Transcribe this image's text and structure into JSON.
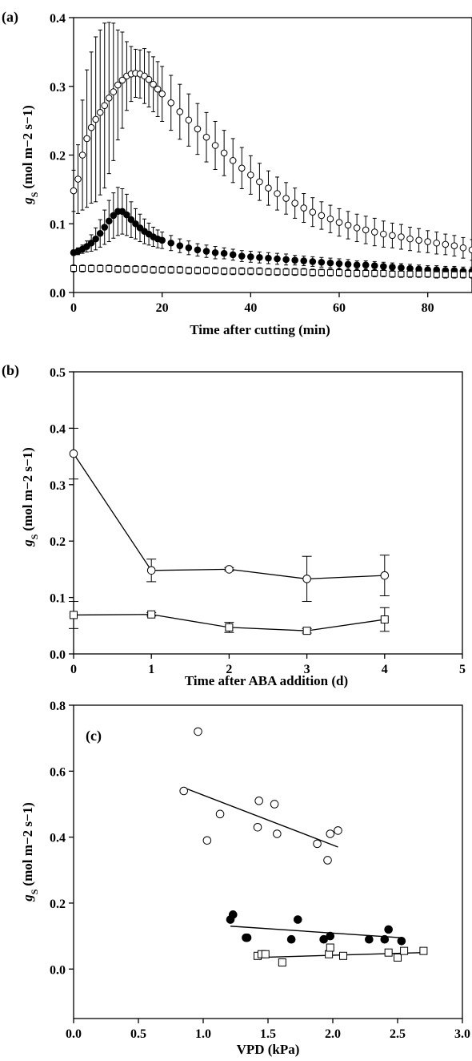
{
  "chart_data": [
    {
      "panel": "(a)",
      "type": "scatter",
      "xlabel": "Time after cutting (min)",
      "ylabel_main": "g",
      "ylabel_sub": "S",
      "ylabel_units": "(mol m−2 s−1)",
      "xlim": [
        0,
        90
      ],
      "ylim": [
        0.0,
        0.4
      ],
      "xticks": [
        0,
        20,
        40,
        60,
        80
      ],
      "xtick_labels": [
        "0",
        "20",
        "40",
        "60",
        "80"
      ],
      "yticks": [
        0.0,
        0.1,
        0.2,
        0.3,
        0.4
      ],
      "ytick_labels": [
        "0.0",
        "0.1",
        "0.2",
        "0.3",
        "0.4"
      ],
      "grid": false,
      "series": [
        {
          "marker": "open-circle",
          "x": [
            0,
            1,
            2,
            3,
            4,
            5,
            6,
            7,
            8,
            9,
            10,
            11,
            12,
            13,
            14,
            15,
            16,
            17,
            18,
            19,
            20,
            22,
            24,
            26,
            28,
            30,
            32,
            34,
            36,
            38,
            40,
            42,
            44,
            46,
            48,
            50,
            52,
            54,
            56,
            58,
            60,
            62,
            64,
            66,
            68,
            70,
            72,
            74,
            76,
            78,
            80,
            82,
            84,
            86,
            88,
            90
          ],
          "y": [
            0.148,
            0.165,
            0.2,
            0.224,
            0.24,
            0.252,
            0.262,
            0.272,
            0.283,
            0.292,
            0.302,
            0.309,
            0.315,
            0.318,
            0.319,
            0.318,
            0.315,
            0.31,
            0.303,
            0.296,
            0.289,
            0.276,
            0.263,
            0.251,
            0.238,
            0.226,
            0.214,
            0.203,
            0.192,
            0.181,
            0.171,
            0.161,
            0.152,
            0.144,
            0.137,
            0.13,
            0.123,
            0.117,
            0.112,
            0.107,
            0.102,
            0.098,
            0.094,
            0.091,
            0.088,
            0.085,
            0.083,
            0.081,
            0.078,
            0.076,
            0.074,
            0.072,
            0.07,
            0.068,
            0.065,
            0.062
          ],
          "err": [
            0.03,
            0.05,
            0.08,
            0.1,
            0.11,
            0.12,
            0.12,
            0.12,
            0.11,
            0.1,
            0.08,
            0.07,
            0.05,
            0.04,
            0.035,
            0.035,
            0.04,
            0.04,
            0.04,
            0.04,
            0.04,
            0.04,
            0.04,
            0.038,
            0.037,
            0.036,
            0.035,
            0.033,
            0.032,
            0.03,
            0.028,
            0.027,
            0.025,
            0.024,
            0.023,
            0.022,
            0.021,
            0.021,
            0.02,
            0.02,
            0.02,
            0.02,
            0.02,
            0.02,
            0.02,
            0.019,
            0.018,
            0.018,
            0.017,
            0.017,
            0.016,
            0.016,
            0.015,
            0.015,
            0.015,
            0.015
          ]
        },
        {
          "marker": "filled-circle",
          "x": [
            0,
            1,
            2,
            3,
            4,
            5,
            6,
            7,
            8,
            9,
            10,
            11,
            12,
            13,
            14,
            15,
            16,
            17,
            18,
            19,
            20,
            22,
            24,
            26,
            28,
            30,
            32,
            34,
            36,
            38,
            40,
            42,
            44,
            46,
            48,
            50,
            52,
            54,
            56,
            58,
            60,
            62,
            64,
            66,
            68,
            70,
            72,
            74,
            76,
            78,
            80,
            82,
            84,
            86,
            88,
            90
          ],
          "y": [
            0.058,
            0.06,
            0.063,
            0.067,
            0.072,
            0.078,
            0.086,
            0.095,
            0.104,
            0.112,
            0.118,
            0.118,
            0.113,
            0.106,
            0.1,
            0.094,
            0.089,
            0.085,
            0.081,
            0.078,
            0.076,
            0.072,
            0.068,
            0.065,
            0.062,
            0.06,
            0.058,
            0.057,
            0.055,
            0.053,
            0.052,
            0.051,
            0.05,
            0.049,
            0.048,
            0.047,
            0.046,
            0.045,
            0.044,
            0.043,
            0.042,
            0.041,
            0.04,
            0.04,
            0.039,
            0.038,
            0.037,
            0.036,
            0.035,
            0.034,
            0.033,
            0.033,
            0.032,
            0.032,
            0.031,
            0.031
          ],
          "err": [
            0.004,
            0.005,
            0.006,
            0.008,
            0.012,
            0.016,
            0.02,
            0.025,
            0.03,
            0.033,
            0.035,
            0.033,
            0.03,
            0.026,
            0.022,
            0.02,
            0.018,
            0.016,
            0.014,
            0.013,
            0.012,
            0.011,
            0.01,
            0.01,
            0.009,
            0.009,
            0.009,
            0.008,
            0.008,
            0.008,
            0.008,
            0.008,
            0.008,
            0.008,
            0.008,
            0.007,
            0.007,
            0.007,
            0.007,
            0.007,
            0.007,
            0.007,
            0.006,
            0.006,
            0.006,
            0.006,
            0.006,
            0.006,
            0.006,
            0.006,
            0.006,
            0.006,
            0.006,
            0.006,
            0.006,
            0.006
          ]
        },
        {
          "marker": "open-square",
          "x": [
            0,
            2,
            4,
            6,
            8,
            10,
            12,
            14,
            16,
            18,
            20,
            22,
            24,
            26,
            28,
            30,
            32,
            34,
            36,
            38,
            40,
            42,
            44,
            46,
            48,
            50,
            52,
            54,
            56,
            58,
            60,
            62,
            64,
            66,
            68,
            70,
            72,
            74,
            76,
            78,
            80,
            82,
            84,
            86,
            88,
            90
          ],
          "y": [
            0.035,
            0.035,
            0.035,
            0.035,
            0.035,
            0.034,
            0.034,
            0.034,
            0.034,
            0.033,
            0.033,
            0.033,
            0.033,
            0.032,
            0.032,
            0.032,
            0.032,
            0.031,
            0.031,
            0.031,
            0.031,
            0.031,
            0.03,
            0.03,
            0.03,
            0.03,
            0.03,
            0.029,
            0.029,
            0.029,
            0.029,
            0.028,
            0.028,
            0.028,
            0.028,
            0.028,
            0.027,
            0.027,
            0.027,
            0.027,
            0.027,
            0.026,
            0.026,
            0.026,
            0.026,
            0.026
          ],
          "err": [
            0.005,
            0.005,
            0.005,
            0.005,
            0.005,
            0.005,
            0.005,
            0.005,
            0.005,
            0.005,
            0.005,
            0.005,
            0.005,
            0.005,
            0.005,
            0.005,
            0.005,
            0.005,
            0.005,
            0.005,
            0.005,
            0.005,
            0.005,
            0.005,
            0.005,
            0.005,
            0.005,
            0.005,
            0.005,
            0.005,
            0.005,
            0.005,
            0.005,
            0.005,
            0.005,
            0.005,
            0.005,
            0.005,
            0.005,
            0.005,
            0.005,
            0.005,
            0.005,
            0.005,
            0.005,
            0.005
          ]
        }
      ]
    },
    {
      "panel": "(b)",
      "type": "line",
      "xlabel": "Time after ABA addition (d)",
      "ylabel_main": "g",
      "ylabel_sub": "S",
      "ylabel_units": "(mol m−2 s−1)",
      "xlim": [
        0,
        5
      ],
      "ylim": [
        0.0,
        0.5
      ],
      "xticks": [
        0,
        1,
        2,
        3,
        4,
        5
      ],
      "xtick_labels": [
        "0",
        "1",
        "2",
        "3",
        "4",
        "5"
      ],
      "yticks": [
        0.0,
        0.1,
        0.2,
        0.3,
        0.4,
        0.5
      ],
      "ytick_labels": [
        "0.0",
        "0.1",
        "0.2",
        "0.3",
        "0.4",
        "0.5"
      ],
      "grid": false,
      "series": [
        {
          "marker": "open-circle",
          "x": [
            0,
            1,
            2,
            3,
            4
          ],
          "y": [
            0.355,
            0.148,
            0.15,
            0.133,
            0.139
          ],
          "err": [
            0.045,
            0.02,
            0.003,
            0.04,
            0.036
          ]
        },
        {
          "marker": "open-square",
          "x": [
            0,
            1,
            2,
            3,
            4
          ],
          "y": [
            0.069,
            0.07,
            0.047,
            0.041,
            0.061
          ],
          "err": [
            0.024,
            0.003,
            0.009,
            0.004,
            0.021
          ]
        }
      ]
    },
    {
      "panel": "(c)",
      "type": "scatter",
      "xlabel": "VPD (kPa)",
      "ylabel_main": "g",
      "ylabel_sub": "S",
      "ylabel_units": "(mol m−2 s−1)",
      "xlim": [
        0.0,
        3.0
      ],
      "ylim": [
        -0.15,
        0.8
      ],
      "xticks": [
        0.0,
        0.5,
        1.0,
        1.5,
        2.0,
        2.5,
        3.0
      ],
      "xtick_labels": [
        "0.0",
        "0.5",
        "1.0",
        "1.5",
        "2.0",
        "2.5",
        "3.0"
      ],
      "yticks": [
        0.0,
        0.2,
        0.4,
        0.6,
        0.8
      ],
      "ytick_labels": [
        "0.0",
        "0.2",
        "0.4",
        "0.6",
        "0.8"
      ],
      "grid": false,
      "series": [
        {
          "marker": "open-circle",
          "x": [
            0.85,
            0.96,
            1.03,
            1.13,
            1.42,
            1.43,
            1.55,
            1.57,
            1.88,
            1.96,
            1.98,
            2.04
          ],
          "y": [
            0.54,
            0.72,
            0.39,
            0.47,
            0.43,
            0.51,
            0.5,
            0.41,
            0.38,
            0.33,
            0.41,
            0.42
          ],
          "fit": [
            [
              0.85,
              0.55
            ],
            [
              2.04,
              0.37
            ]
          ]
        },
        {
          "marker": "filled-circle",
          "x": [
            1.21,
            1.23,
            1.33,
            1.34,
            1.68,
            1.73,
            1.93,
            1.98,
            2.28,
            2.4,
            2.43,
            2.53
          ],
          "y": [
            0.15,
            0.165,
            0.095,
            0.095,
            0.09,
            0.15,
            0.09,
            0.1,
            0.09,
            0.09,
            0.12,
            0.085
          ],
          "fit": [
            [
              1.21,
              0.13
            ],
            [
              2.53,
              0.095
            ]
          ]
        },
        {
          "marker": "open-square",
          "x": [
            1.42,
            1.45,
            1.48,
            1.61,
            1.97,
            1.98,
            2.08,
            2.43,
            2.5,
            2.55,
            2.7
          ],
          "y": [
            0.04,
            0.045,
            0.045,
            0.02,
            0.045,
            0.065,
            0.04,
            0.05,
            0.035,
            0.055,
            0.055
          ],
          "fit": [
            [
              1.42,
              0.035
            ],
            [
              2.7,
              0.05
            ]
          ]
        }
      ]
    }
  ]
}
